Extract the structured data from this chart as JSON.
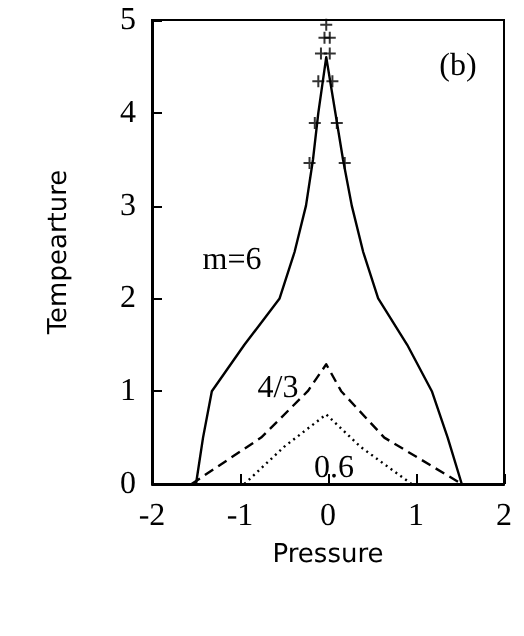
{
  "chart_data": {
    "type": "line",
    "xlabel": "Pressure",
    "ylabel": "Tempearture",
    "xlim": [
      -2,
      2
    ],
    "ylim": [
      0,
      5
    ],
    "xticks": [
      -2,
      -1,
      0,
      1,
      2
    ],
    "yticks": [
      0,
      1,
      2,
      3,
      4,
      5
    ],
    "grid": false,
    "marker": "none",
    "series": [
      {
        "color": "#000000",
        "line_style": "solid",
        "x": [
          -1.5,
          -1.42,
          -1.32,
          -0.95,
          -0.55,
          -0.38,
          -0.25,
          -0.17,
          -0.11,
          -0.02,
          0.17,
          0.27,
          0.4,
          0.57,
          0.9,
          1.18,
          1.36,
          1.52
        ],
        "values": [
          0,
          0.5,
          1,
          1.5,
          2,
          2.5,
          3,
          3.5,
          4,
          4.6,
          3.5,
          3,
          2.5,
          2,
          1.5,
          1,
          0.5,
          0
        ]
      },
      {
        "color": "#000000",
        "line_style": "dashed",
        "x": [
          -1.55,
          -0.76,
          -0.23,
          -0.02,
          0.15,
          0.64,
          1.52
        ],
        "values": [
          0,
          0.5,
          1,
          1.29,
          1,
          0.5,
          0
        ]
      },
      {
        "color": "#000000",
        "line_style": "dotted",
        "x": [
          -0.95,
          -0.5,
          -0.02,
          0.37,
          0.95
        ],
        "values": [
          0,
          0.4,
          0.75,
          0.4,
          0
        ]
      },
      {
        "type": "scatter",
        "marker": "cross",
        "color": "#000000",
        "x": [
          -0.02,
          -0.04,
          0.02,
          -0.08,
          0.02,
          -0.11,
          0.05,
          -0.15,
          0.1,
          -0.21,
          0.19
        ],
        "values": [
          4.95,
          4.81,
          4.81,
          4.64,
          4.64,
          4.34,
          4.34,
          3.89,
          3.89,
          3.46,
          3.46
        ]
      }
    ],
    "annotations": [
      "m=6",
      "4/3",
      "0.6",
      "(b)"
    ]
  }
}
